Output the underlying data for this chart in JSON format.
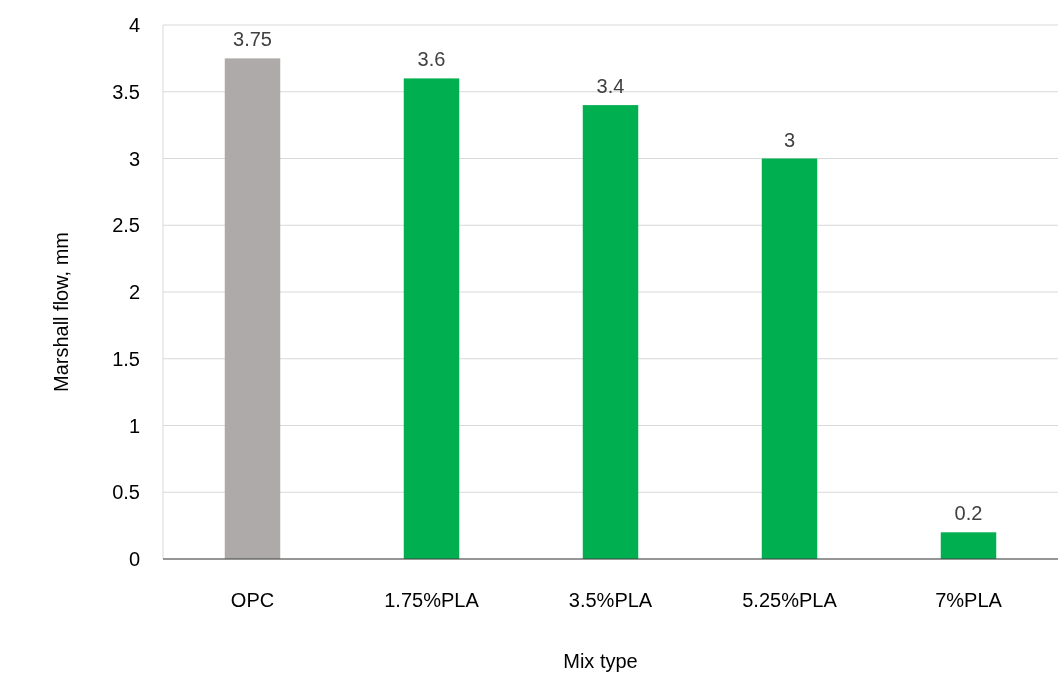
{
  "chart_data": {
    "type": "bar",
    "xlabel": "Mix type",
    "ylabel": "Marshall flow, mm",
    "categories": [
      "OPC",
      "1.75%PLA",
      "3.5%PLA",
      "5.25%PLA",
      "7%PLA"
    ],
    "values": [
      3.75,
      3.6,
      3.4,
      3,
      0.2
    ],
    "colors": [
      "#aeaaaa",
      "#00b050",
      "#00b050",
      "#00b050",
      "#00b050"
    ],
    "ylim": [
      0,
      4
    ],
    "yticks": [
      0,
      0.5,
      1,
      1.5,
      2,
      2.5,
      3,
      3.5,
      4
    ],
    "grid": "y",
    "data_labels": true
  }
}
